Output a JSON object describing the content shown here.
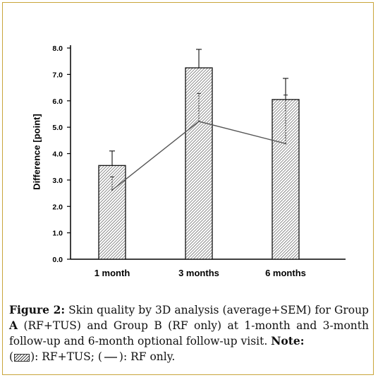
{
  "chart_data": {
    "type": "bar",
    "categories": [
      "1 month",
      "3 months",
      "6 months"
    ],
    "series": [
      {
        "name": "RF+TUS",
        "render": "bar",
        "values": [
          3.55,
          7.25,
          6.05
        ],
        "error_upper": [
          4.1,
          7.95,
          6.85
        ]
      },
      {
        "name": "RF only",
        "render": "line",
        "values": [
          2.62,
          5.22,
          4.38
        ],
        "error_upper": [
          3.12,
          6.28,
          6.22
        ]
      }
    ],
    "ylabel": "Difference [point]",
    "ylim": [
      0,
      8
    ],
    "yticks": [
      "0.0",
      "1.0",
      "2.0",
      "3.0",
      "4.0",
      "5.0",
      "6.0",
      "7.0",
      "8.0"
    ],
    "grid": false,
    "colors": {
      "bar_hatch": "#444444",
      "line": "#555555"
    }
  },
  "caption": {
    "figure_label": "Figure 2:",
    "text_1": "Skin quality by 3D analysis (average+SEM) for Group",
    "group_a_letter": "A",
    "text_2": "(RF+TUS) and Group B (RF only) at 1-month and 3-month follow-up and 6-month optional follow-up visit.",
    "note_label": "Note:",
    "legend_1_prefix": "(",
    "legend_1_text": "): RF+TUS; (",
    "legend_2_text": "): RF only."
  }
}
